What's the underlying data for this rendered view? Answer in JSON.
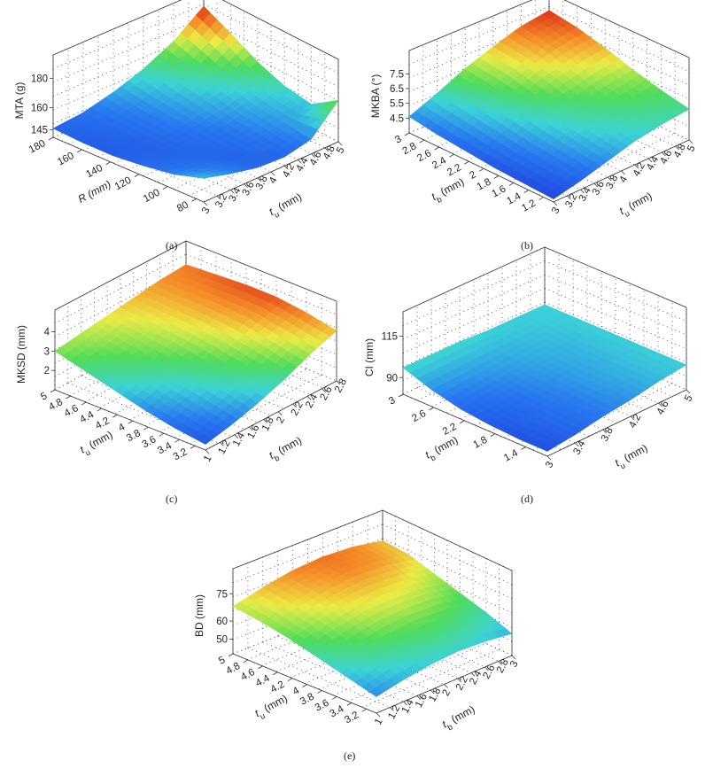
{
  "chart_data": [
    {
      "panel": "(a)",
      "type": "surface",
      "zlabel": "MTA (g)",
      "zticks": [
        "145",
        "160",
        "180"
      ],
      "zlim": [
        140,
        185
      ],
      "left_axis": {
        "label": "R (mm)",
        "ticks": [
          "180",
          "160",
          "140",
          "120",
          "100",
          "80"
        ]
      },
      "right_axis": {
        "label": "t",
        "sub": "u",
        "unit": " (mm)",
        "ticks": [
          "3",
          "3.2",
          "3.4",
          "3.6",
          "3.8",
          "4",
          "4.2",
          "4.4",
          "4.6",
          "4.8",
          "5"
        ]
      },
      "grid": true,
      "z_grid": [
        [
          146,
          148,
          153,
          160,
          170,
          185
        ],
        [
          145,
          147,
          150,
          156,
          164,
          176
        ],
        [
          145,
          146,
          149,
          153,
          158,
          166
        ],
        [
          147,
          146,
          147,
          150,
          154,
          159
        ],
        [
          150,
          148,
          146,
          148,
          152,
          156
        ],
        [
          156,
          151,
          147,
          146,
          150,
          168
        ]
      ]
    },
    {
      "panel": "(b)",
      "type": "surface",
      "zlabel": "MKBA (°)",
      "zticks": [
        "4.5",
        "5.5",
        "6.5",
        "7.5"
      ],
      "zlim": [
        3.5,
        8.0
      ],
      "left_axis": {
        "label": "t",
        "sub": "b",
        "unit": " (mm)",
        "ticks": [
          "3",
          "2.8",
          "2.6",
          "2.4",
          "2.2",
          "2",
          "1.8",
          "1.6",
          "1.4",
          "1.2"
        ]
      },
      "right_axis": {
        "label": "t",
        "sub": "u",
        "unit": " (mm)",
        "ticks": [
          "3",
          "3.2",
          "3.4",
          "3.6",
          "3.8",
          "4",
          "4.2",
          "4.4",
          "4.6",
          "4.8",
          "5"
        ]
      },
      "grid": true,
      "z_grid": [
        [
          4.6,
          5.4,
          6.3,
          7.0,
          7.6,
          7.9
        ],
        [
          4.3,
          5.1,
          6.0,
          6.8,
          7.3,
          7.6
        ],
        [
          4.1,
          4.8,
          5.6,
          6.3,
          6.8,
          7.1
        ],
        [
          3.9,
          4.5,
          5.2,
          5.8,
          6.2,
          6.5
        ],
        [
          3.8,
          4.3,
          4.9,
          5.4,
          5.8,
          6.0
        ],
        [
          3.7,
          4.1,
          4.6,
          5.1,
          5.4,
          5.6
        ]
      ]
    },
    {
      "panel": "(c)",
      "type": "surface",
      "zlabel": "MKSD (mm)",
      "zticks": [
        "2",
        "3",
        "4"
      ],
      "zlim": [
        1.0,
        4.3
      ],
      "left_axis": {
        "label": "t",
        "sub": "u",
        "unit": " (mm)",
        "ticks": [
          "5",
          "4.8",
          "4.6",
          "4.4",
          "4.2",
          "4",
          "3.8",
          "3.6",
          "3.4",
          "3.2"
        ]
      },
      "right_axis": {
        "label": "t",
        "sub": "b",
        "unit": " (mm)",
        "ticks": [
          "1",
          "1.2",
          "1.4",
          "1.6",
          "1.8",
          "2",
          "2.2",
          "2.4",
          "2.6",
          "2.8"
        ]
      },
      "grid": true,
      "z_grid": [
        [
          3.0,
          3.2,
          3.4,
          3.6,
          3.8,
          3.9
        ],
        [
          2.6,
          2.9,
          3.2,
          3.5,
          3.8,
          4.0
        ],
        [
          2.2,
          2.6,
          3.0,
          3.4,
          3.8,
          4.1
        ],
        [
          1.8,
          2.2,
          2.7,
          3.2,
          3.7,
          4.1
        ],
        [
          1.5,
          1.9,
          2.4,
          2.9,
          3.4,
          3.9
        ],
        [
          1.3,
          1.6,
          2.0,
          2.5,
          3.1,
          3.6
        ]
      ]
    },
    {
      "panel": "(d)",
      "type": "surface",
      "zlabel": "CI (mm)",
      "zticks": [
        "90",
        "115"
      ],
      "zlim": [
        80,
        120
      ],
      "left_axis": {
        "label": "t",
        "sub": "b",
        "unit": " (mm)",
        "ticks": [
          "3",
          "2.6",
          "2.2",
          "1.8",
          "1.4"
        ]
      },
      "right_axis": {
        "label": "t",
        "sub": "u",
        "unit": " (mm)",
        "ticks": [
          "3",
          "3.4",
          "3.8",
          "4.2",
          "4.6",
          "5"
        ]
      },
      "grid": true,
      "z_grid": [
        [
          96,
          96,
          96,
          95,
          95,
          95
        ],
        [
          90,
          91,
          92,
          93,
          94,
          95
        ],
        [
          86,
          88,
          90,
          92,
          93,
          95
        ],
        [
          84,
          86,
          89,
          91,
          93,
          95
        ],
        [
          83,
          86,
          88,
          91,
          93,
          95
        ],
        [
          83,
          85,
          88,
          90,
          93,
          95
        ]
      ]
    },
    {
      "panel": "(e)",
      "type": "surface",
      "zlabel": "BD (mm)",
      "zticks": [
        "50",
        "60",
        "75"
      ],
      "zlim": [
        42,
        80
      ],
      "left_axis": {
        "label": "t",
        "sub": "u",
        "unit": " (mm)",
        "ticks": [
          "5",
          "4.8",
          "4.6",
          "4.4",
          "4.2",
          "4",
          "3.8",
          "3.6",
          "3.4",
          "3.2"
        ]
      },
      "right_axis": {
        "label": "t",
        "sub": "b",
        "unit": " (mm)",
        "ticks": [
          "1",
          "1.2",
          "1.4",
          "1.6",
          "1.8",
          "2",
          "2.2",
          "2.4",
          "2.6",
          "2.8",
          "3"
        ]
      },
      "grid": true,
      "z_grid": [
        [
          68,
          72,
          75,
          76,
          75,
          72
        ],
        [
          66,
          70,
          73,
          75,
          74,
          71
        ],
        [
          63,
          67,
          70,
          71,
          70,
          67
        ],
        [
          59,
          63,
          66,
          67,
          66,
          63
        ],
        [
          55,
          59,
          61,
          62,
          61,
          59
        ],
        [
          51,
          54,
          56,
          57,
          56,
          54
        ]
      ]
    }
  ],
  "captions": {
    "a": "(a)",
    "b": "(b)",
    "c": "(c)",
    "d": "(d)",
    "e": "(e)"
  }
}
